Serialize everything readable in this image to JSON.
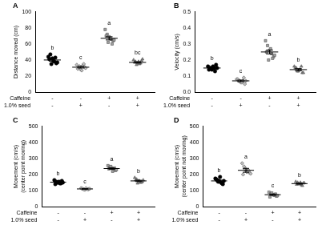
{
  "chart_data": [
    {
      "type": "scatter",
      "title": "A",
      "y_label": "Distance moved (cm)",
      "ylim": [
        0,
        100
      ],
      "yticks": [
        0,
        20,
        40,
        60,
        80,
        100
      ],
      "grid": false,
      "x_rows": [
        {
          "label": "Caffeine",
          "values": [
            "-",
            "-",
            "+",
            "+"
          ]
        },
        {
          "label": "1.0% seed",
          "values": [
            "-",
            "+",
            "-",
            "+"
          ]
        }
      ],
      "series": [
        {
          "color": "#000000",
          "marker": "circle",
          "values": [
            44,
            47,
            42,
            38,
            36,
            41,
            35,
            39,
            43,
            37
          ],
          "mean": 40,
          "error": 1.5,
          "letter": "b"
        },
        {
          "color": "#c0c0c0",
          "marker": "rectRot",
          "values": [
            34,
            30,
            28,
            33,
            31,
            29,
            32,
            27,
            35,
            30
          ],
          "mean": 31,
          "error": 1,
          "letter": "c"
        },
        {
          "color": "#a0a0a0",
          "marker": "rect",
          "values": [
            78,
            72,
            69,
            66,
            64,
            70,
            62,
            67,
            60,
            65
          ],
          "mean": 67,
          "error": 2,
          "letter": "a"
        },
        {
          "color": "#808080",
          "marker": "triangle",
          "values": [
            40,
            38,
            36,
            35,
            39,
            37,
            34,
            38,
            36,
            41
          ],
          "mean": 37,
          "error": 0.8,
          "letter": "bc"
        }
      ]
    },
    {
      "type": "scatter",
      "title": "B",
      "y_label": "Velocity (cm/s)",
      "ylim": [
        0,
        0.5
      ],
      "yticks": [
        {
          "value": 0,
          "label": "0.0"
        },
        0.1,
        0.2,
        0.3,
        0.4,
        0.5
      ],
      "grid": false,
      "x_rows": [
        {
          "label": "Caffeine",
          "values": [
            "-",
            "-",
            "+",
            "+"
          ]
        },
        {
          "label": "1.0% seed",
          "values": [
            "-",
            "+",
            "-",
            "+"
          ]
        }
      ],
      "series": [
        {
          "color": "#000000",
          "marker": "circle",
          "values": [
            0.16,
            0.15,
            0.14,
            0.15,
            0.17,
            0.14,
            0.15,
            0.16,
            0.13,
            0.15
          ],
          "mean": 0.15,
          "error": 0.005,
          "letter": "b"
        },
        {
          "color": "#c0c0c0",
          "marker": "rectRot",
          "values": [
            0.08,
            0.07,
            0.06,
            0.07,
            0.05,
            0.08,
            0.07,
            0.06,
            0.09,
            0.07
          ],
          "mean": 0.07,
          "error": 0.005,
          "letter": "c"
        },
        {
          "color": "#a0a0a0",
          "marker": "rect",
          "values": [
            0.32,
            0.29,
            0.26,
            0.24,
            0.22,
            0.25,
            0.2,
            0.27,
            0.21,
            0.23
          ],
          "mean": 0.25,
          "error": 0.012,
          "letter": "a"
        },
        {
          "color": "#808080",
          "marker": "triangle",
          "values": [
            0.16,
            0.15,
            0.13,
            0.14,
            0.12,
            0.15,
            0.13,
            0.14,
            0.16,
            0.12
          ],
          "mean": 0.14,
          "error": 0.006,
          "letter": "b"
        }
      ]
    },
    {
      "type": "scatter",
      "title": "C",
      "y_label": [
        "Movement (cm/s)",
        "(center point moving)"
      ],
      "ylim": [
        0,
        500
      ],
      "yticks": [
        0,
        100,
        200,
        300,
        400,
        500
      ],
      "grid": false,
      "x_rows": [
        {
          "label": "Caffeine",
          "values": [
            "-",
            "-",
            "+",
            "+"
          ]
        },
        {
          "label": "1.0% seed",
          "values": [
            "-",
            "+",
            "-",
            "+"
          ]
        }
      ],
      "series": [
        {
          "color": "#000000",
          "marker": "circle",
          "values": [
            165,
            155,
            150,
            145,
            160,
            140,
            150,
            155,
            145,
            150
          ],
          "mean": 152,
          "error": 3,
          "letter": "b"
        },
        {
          "color": "#c0c0c0",
          "marker": "rectRot",
          "values": [
            115,
            110,
            105,
            110,
            108,
            112,
            106,
            114,
            109,
            111
          ],
          "mean": 110,
          "error": 1.5,
          "letter": "c"
        },
        {
          "color": "#a0a0a0",
          "marker": "rect",
          "values": [
            255,
            245,
            240,
            230,
            225,
            235,
            250,
            220,
            240,
            230
          ],
          "mean": 237,
          "error": 4,
          "letter": "a"
        },
        {
          "color": "#808080",
          "marker": "triangle",
          "values": [
            180,
            170,
            160,
            150,
            155,
            165,
            145,
            160,
            150,
            165
          ],
          "mean": 160,
          "error": 4,
          "letter": "b"
        }
      ]
    },
    {
      "type": "scatter",
      "title": "D",
      "y_label": [
        "Movement (cm/s)",
        "(center point not moving)"
      ],
      "ylim": [
        0,
        500
      ],
      "yticks": [
        0,
        100,
        200,
        300,
        400,
        500
      ],
      "grid": false,
      "x_rows": [
        {
          "label": "Caffeine",
          "values": [
            "-",
            "-",
            "+",
            "+"
          ]
        },
        {
          "label": "1.0% seed",
          "values": [
            "-",
            "+",
            "-",
            "+"
          ]
        }
      ],
      "series": [
        {
          "color": "#000000",
          "marker": "circle",
          "values": [
            175,
            165,
            160,
            150,
            140,
            170,
            155,
            185,
            145,
            160
          ],
          "mean": 160,
          "error": 5,
          "letter": "b"
        },
        {
          "color": "#c0c0c0",
          "marker": "rectRot",
          "values": [
            270,
            250,
            235,
            220,
            210,
            200,
            230,
            215,
            225,
            205
          ],
          "mean": 226,
          "error": 12,
          "letter": "a"
        },
        {
          "color": "#a0a0a0",
          "marker": "rect",
          "values": [
            90,
            80,
            75,
            70,
            65,
            60,
            85,
            72,
            78,
            68
          ],
          "mean": 74,
          "error": 4,
          "letter": "c"
        },
        {
          "color": "#808080",
          "marker": "triangle",
          "values": [
            155,
            150,
            140,
            135,
            145,
            138,
            142,
            150,
            130,
            148
          ],
          "mean": 143,
          "error": 3,
          "letter": "b"
        }
      ]
    }
  ]
}
